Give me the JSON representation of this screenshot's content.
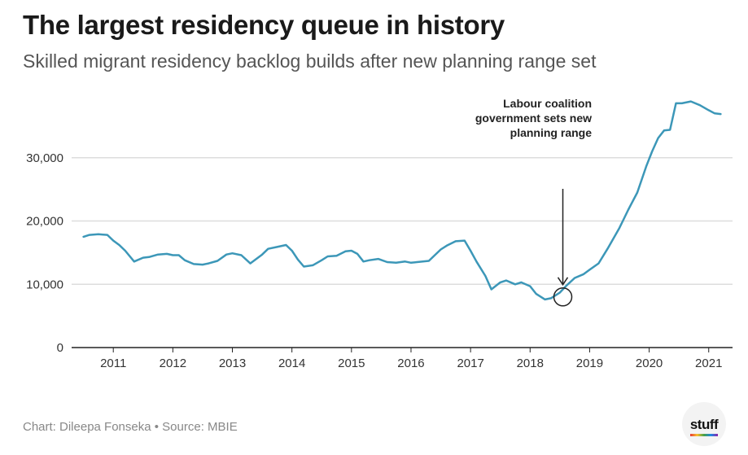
{
  "header": {
    "title": "The largest residency queue in history",
    "subtitle": "Skilled migrant residency backlog builds after new planning range set"
  },
  "footer": {
    "credit": "Chart: Dileepa Fonseka • Source: MBIE",
    "logo": "stuff"
  },
  "colors": {
    "line": "#3c97b8",
    "grid": "#dddddd",
    "axis": "#222222"
  },
  "chart_data": {
    "type": "line",
    "title": "The largest residency queue in history",
    "subtitle": "Skilled migrant residency backlog builds after new planning range set",
    "xlabel": "",
    "ylabel": "",
    "xlim": [
      2010.3,
      2021.4
    ],
    "ylim": [
      0,
      40000
    ],
    "grid": true,
    "y_ticks": [
      {
        "value": 0,
        "label": "0"
      },
      {
        "value": 10000,
        "label": "10,000"
      },
      {
        "value": 20000,
        "label": "20,000"
      },
      {
        "value": 30000,
        "label": "30,000"
      }
    ],
    "x_ticks": [
      {
        "value": 2011,
        "label": "2011"
      },
      {
        "value": 2012,
        "label": "2012"
      },
      {
        "value": 2013,
        "label": "2013"
      },
      {
        "value": 2014,
        "label": "2014"
      },
      {
        "value": 2015,
        "label": "2015"
      },
      {
        "value": 2016,
        "label": "2016"
      },
      {
        "value": 2017,
        "label": "2017"
      },
      {
        "value": 2018,
        "label": "2018"
      },
      {
        "value": 2019,
        "label": "2019"
      },
      {
        "value": 2020,
        "label": "2020"
      },
      {
        "value": 2021,
        "label": "2021"
      }
    ],
    "series": [
      {
        "x": [
          2010.5,
          2010.6,
          2010.75,
          2010.9,
          2011.0,
          2011.1,
          2011.2,
          2011.35,
          2011.5,
          2011.6,
          2011.75,
          2011.9,
          2012.0,
          2012.1,
          2012.2,
          2012.35,
          2012.5,
          2012.6,
          2012.75,
          2012.9,
          2013.0,
          2013.15,
          2013.3,
          2013.5,
          2013.6,
          2013.75,
          2013.9,
          2014.0,
          2014.1,
          2014.2,
          2014.35,
          2014.5,
          2014.6,
          2014.75,
          2014.9,
          2015.0,
          2015.1,
          2015.2,
          2015.3,
          2015.45,
          2015.6,
          2015.75,
          2015.9,
          2016.0,
          2016.1,
          2016.3,
          2016.5,
          2016.6,
          2016.75,
          2016.9,
          2017.0,
          2017.1,
          2017.25,
          2017.35,
          2017.5,
          2017.6,
          2017.75,
          2017.85,
          2018.0,
          2018.1,
          2018.25,
          2018.35,
          2018.5,
          2018.6,
          2018.75,
          2018.9,
          2019.0,
          2019.15,
          2019.3,
          2019.5,
          2019.65,
          2019.8,
          2019.95,
          2020.05,
          2020.15,
          2020.25,
          2020.35,
          2020.45,
          2020.55,
          2020.7,
          2020.85,
          2021.0,
          2021.1,
          2021.2
        ],
        "values": [
          17500,
          17800,
          17900,
          17800,
          16900,
          16200,
          15300,
          13600,
          14200,
          14300,
          14700,
          14800,
          14600,
          14600,
          13800,
          13200,
          13100,
          13300,
          13700,
          14700,
          14900,
          14600,
          13300,
          14700,
          15600,
          15900,
          16200,
          15300,
          13900,
          12800,
          13000,
          13800,
          14400,
          14500,
          15200,
          15300,
          14800,
          13600,
          13800,
          14000,
          13500,
          13400,
          13600,
          13400,
          13500,
          13700,
          15500,
          16100,
          16800,
          16900,
          15300,
          13600,
          11300,
          9200,
          10300,
          10600,
          10000,
          10300,
          9700,
          8500,
          7600,
          7800,
          8700,
          9700,
          11000,
          11600,
          12300,
          13300,
          15600,
          18900,
          21800,
          24500,
          28600,
          31000,
          33100,
          34300,
          34400,
          38600,
          38600,
          38900,
          38300,
          37500,
          37000,
          36900
        ]
      }
    ],
    "annotations": [
      {
        "lines": [
          "Labour coalition",
          "government sets new",
          "planning range"
        ],
        "x": 2018.55,
        "y": 8000
      }
    ]
  }
}
